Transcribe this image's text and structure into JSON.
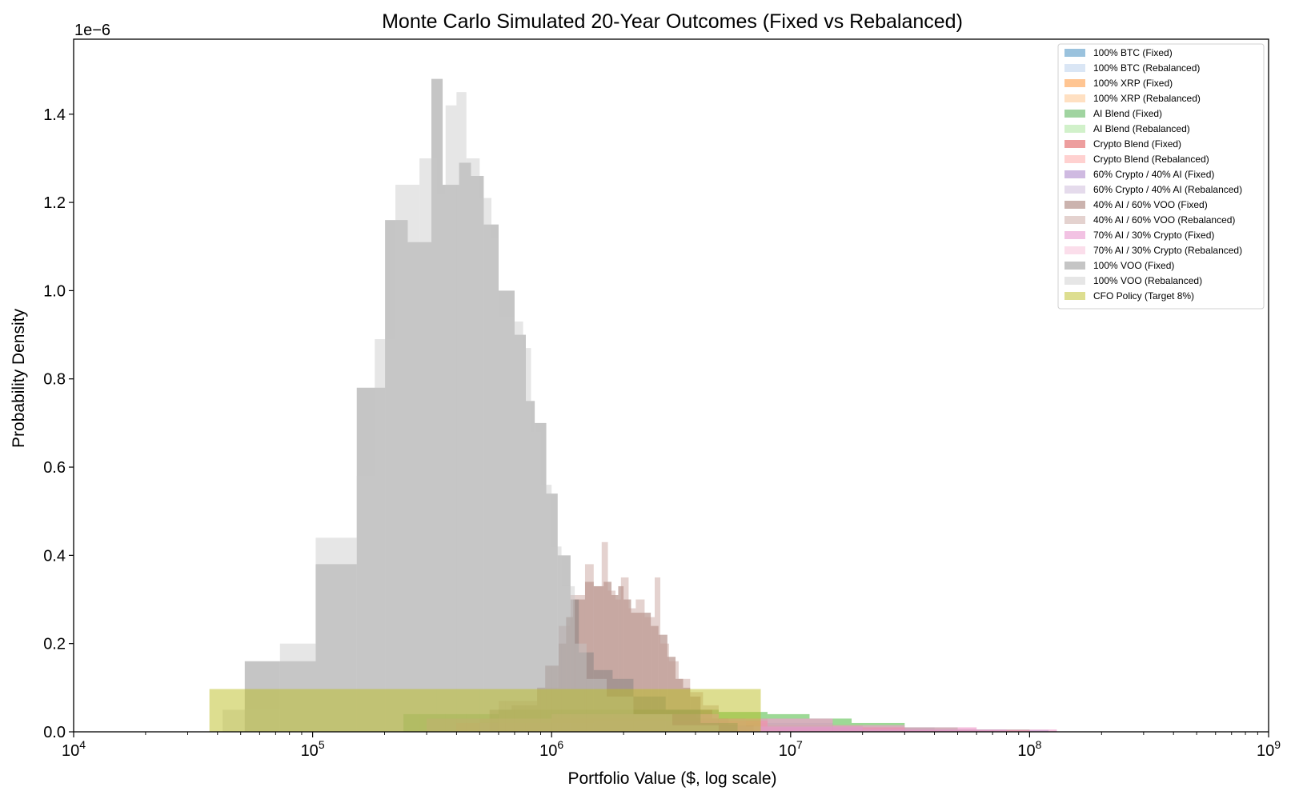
{
  "chart_data": {
    "type": "bar",
    "title": "Monte Carlo Simulated 20-Year Outcomes (Fixed vs Rebalanced)",
    "xlabel": "Portfolio Value ($, log scale)",
    "ylabel": "Probability Density",
    "y_offset_label": "1e−6",
    "x_scale": "log",
    "xlim": [
      10000,
      1000000000
    ],
    "ylim": [
      0,
      1.57
    ],
    "y_multiplier": 1e-06,
    "grid": false,
    "legend_position": "top-right",
    "x_ticks": [
      {
        "value": 10000,
        "base": "10",
        "exp": "4"
      },
      {
        "value": 100000,
        "base": "10",
        "exp": "5"
      },
      {
        "value": 1000000,
        "base": "10",
        "exp": "6"
      },
      {
        "value": 10000000,
        "base": "10",
        "exp": "7"
      },
      {
        "value": 100000000,
        "base": "10",
        "exp": "8"
      },
      {
        "value": 1000000000,
        "base": "10",
        "exp": "9"
      }
    ],
    "y_ticks": [
      {
        "value": 0.0,
        "label": "0.0"
      },
      {
        "value": 0.2,
        "label": "0.2"
      },
      {
        "value": 0.4,
        "label": "0.4"
      },
      {
        "value": 0.6,
        "label": "0.6"
      },
      {
        "value": 0.8,
        "label": "0.8"
      },
      {
        "value": 1.0,
        "label": "1.0"
      },
      {
        "value": 1.2,
        "label": "1.2"
      },
      {
        "value": 1.4,
        "label": "1.4"
      }
    ],
    "series": [
      {
        "name": "100% BTC (Fixed)",
        "color": "#1f77b4",
        "alpha": 0.45,
        "bins": [
          [
            700000,
            1500000,
            0.02
          ],
          [
            1500000,
            3000000,
            0.03
          ],
          [
            3000000,
            6000000,
            0.03
          ],
          [
            6000000,
            15000000,
            0.02
          ],
          [
            15000000,
            40000000,
            0.01
          ],
          [
            40000000,
            120000000,
            0.004
          ]
        ]
      },
      {
        "name": "100% BTC (Rebalanced)",
        "color": "#aec7e8",
        "alpha": 0.45,
        "bins": [
          [
            700000,
            1500000,
            0.02
          ],
          [
            1500000,
            3000000,
            0.03
          ],
          [
            3000000,
            6000000,
            0.03
          ],
          [
            6000000,
            15000000,
            0.02
          ],
          [
            15000000,
            40000000,
            0.01
          ],
          [
            40000000,
            120000000,
            0.004
          ]
        ]
      },
      {
        "name": "100% XRP (Fixed)",
        "color": "#ff7f0e",
        "alpha": 0.45,
        "bins": [
          [
            500000,
            1000000,
            0.03
          ],
          [
            1000000,
            2000000,
            0.04
          ],
          [
            2000000,
            4000000,
            0.04
          ],
          [
            4000000,
            8000000,
            0.03
          ],
          [
            8000000,
            20000000,
            0.015
          ]
        ]
      },
      {
        "name": "100% XRP (Rebalanced)",
        "color": "#ffbb78",
        "alpha": 0.45,
        "bins": [
          [
            500000,
            1000000,
            0.03
          ],
          [
            1000000,
            2000000,
            0.04
          ],
          [
            2000000,
            4000000,
            0.04
          ],
          [
            4000000,
            8000000,
            0.03
          ],
          [
            8000000,
            20000000,
            0.015
          ]
        ]
      },
      {
        "name": "AI Blend (Fixed)",
        "color": "#2ca02c",
        "alpha": 0.45,
        "bins": [
          [
            240000,
            600000,
            0.04
          ],
          [
            600000,
            2000000,
            0.05
          ],
          [
            2000000,
            5000000,
            0.05
          ],
          [
            5000000,
            8000000,
            0.045
          ],
          [
            8000000,
            12000000,
            0.04
          ],
          [
            12000000,
            18000000,
            0.03
          ],
          [
            18000000,
            30000000,
            0.02
          ],
          [
            30000000,
            50000000,
            0.01
          ],
          [
            50000000,
            100000000,
            0.005
          ]
        ]
      },
      {
        "name": "AI Blend (Rebalanced)",
        "color": "#98df8a",
        "alpha": 0.45,
        "bins": [
          [
            240000,
            600000,
            0.04
          ],
          [
            600000,
            2000000,
            0.05
          ],
          [
            2000000,
            5000000,
            0.05
          ],
          [
            5000000,
            8000000,
            0.045
          ],
          [
            8000000,
            12000000,
            0.04
          ],
          [
            12000000,
            18000000,
            0.03
          ],
          [
            18000000,
            30000000,
            0.02
          ],
          [
            30000000,
            50000000,
            0.01
          ],
          [
            50000000,
            100000000,
            0.005
          ]
        ]
      },
      {
        "name": "Crypto Blend (Fixed)",
        "color": "#d62728",
        "alpha": 0.45,
        "bins": [
          [
            400000,
            1000000,
            0.02
          ],
          [
            1000000,
            3000000,
            0.03
          ],
          [
            3000000,
            8000000,
            0.025
          ],
          [
            8000000,
            30000000,
            0.01
          ],
          [
            30000000,
            100000000,
            0.004
          ]
        ]
      },
      {
        "name": "Crypto Blend (Rebalanced)",
        "color": "#ff9896",
        "alpha": 0.45,
        "bins": [
          [
            400000,
            1000000,
            0.02
          ],
          [
            1000000,
            3000000,
            0.03
          ],
          [
            3000000,
            8000000,
            0.025
          ],
          [
            8000000,
            30000000,
            0.01
          ],
          [
            30000000,
            100000000,
            0.004
          ]
        ]
      },
      {
        "name": "60% Crypto / 40% AI (Fixed)",
        "color": "#9467bd",
        "alpha": 0.45,
        "bins": [
          [
            500000,
            1500000,
            0.02
          ],
          [
            1500000,
            5000000,
            0.025
          ],
          [
            5000000,
            20000000,
            0.012
          ],
          [
            20000000,
            80000000,
            0.005
          ]
        ]
      },
      {
        "name": "60% Crypto / 40% AI (Rebalanced)",
        "color": "#c5b0d5",
        "alpha": 0.45,
        "bins": [
          [
            500000,
            1500000,
            0.02
          ],
          [
            1500000,
            5000000,
            0.025
          ],
          [
            5000000,
            20000000,
            0.012
          ],
          [
            20000000,
            80000000,
            0.005
          ]
        ]
      },
      {
        "name": "40% AI / 60% VOO (Fixed)",
        "color": "#8c564b",
        "alpha": 0.45,
        "bins": [
          [
            550000,
            680000,
            0.05
          ],
          [
            680000,
            870000,
            0.06
          ],
          [
            870000,
            940000,
            0.1
          ],
          [
            940000,
            1070000,
            0.15
          ],
          [
            1070000,
            1150000,
            0.2
          ],
          [
            1150000,
            1230000,
            0.26
          ],
          [
            1230000,
            1380000,
            0.3
          ],
          [
            1380000,
            1500000,
            0.34
          ],
          [
            1500000,
            1650000,
            0.33
          ],
          [
            1650000,
            1780000,
            0.34
          ],
          [
            1780000,
            1900000,
            0.31
          ],
          [
            1900000,
            2000000,
            0.33
          ],
          [
            2000000,
            2150000,
            0.3
          ],
          [
            2150000,
            2400000,
            0.27
          ],
          [
            2400000,
            2600000,
            0.27
          ],
          [
            2600000,
            2800000,
            0.24
          ],
          [
            2800000,
            3050000,
            0.22
          ],
          [
            3050000,
            3300000,
            0.17
          ],
          [
            3300000,
            3550000,
            0.12
          ],
          [
            3550000,
            3800000,
            0.1
          ],
          [
            3800000,
            4200000,
            0.08
          ],
          [
            4200000,
            4700000,
            0.05
          ],
          [
            4700000,
            5500000,
            0.03
          ],
          [
            5500000,
            7000000,
            0.015
          ]
        ]
      },
      {
        "name": "40% AI / 60% VOO (Rebalanced)",
        "color": "#c49c94",
        "alpha": 0.45,
        "bins": [
          [
            600000,
            870000,
            0.07
          ],
          [
            870000,
            1070000,
            0.1
          ],
          [
            1070000,
            1200000,
            0.24
          ],
          [
            1200000,
            1380000,
            0.31
          ],
          [
            1380000,
            1500000,
            0.38
          ],
          [
            1500000,
            1620000,
            0.33
          ],
          [
            1620000,
            1720000,
            0.43
          ],
          [
            1720000,
            1850000,
            0.32
          ],
          [
            1850000,
            1950000,
            0.3
          ],
          [
            1950000,
            2100000,
            0.35
          ],
          [
            2100000,
            2250000,
            0.28
          ],
          [
            2250000,
            2450000,
            0.3
          ],
          [
            2450000,
            2700000,
            0.26
          ],
          [
            2700000,
            2850000,
            0.35
          ],
          [
            2850000,
            3100000,
            0.2
          ],
          [
            3100000,
            3400000,
            0.16
          ],
          [
            3400000,
            3800000,
            0.12
          ],
          [
            3800000,
            4300000,
            0.09
          ],
          [
            4300000,
            5000000,
            0.06
          ],
          [
            5000000,
            6500000,
            0.03
          ],
          [
            6500000,
            9000000,
            0.012
          ]
        ]
      },
      {
        "name": "70% AI / 30% Crypto (Fixed)",
        "color": "#e377c2",
        "alpha": 0.45,
        "bins": [
          [
            300000,
            1000000,
            0.03
          ],
          [
            1000000,
            5000000,
            0.04
          ],
          [
            5000000,
            15000000,
            0.03
          ],
          [
            15000000,
            30000000,
            0.015
          ],
          [
            30000000,
            60000000,
            0.01
          ],
          [
            60000000,
            130000000,
            0.005
          ]
        ]
      },
      {
        "name": "70% AI / 30% Crypto (Rebalanced)",
        "color": "#f7b6d2",
        "alpha": 0.45,
        "bins": [
          [
            300000,
            1000000,
            0.03
          ],
          [
            1000000,
            5000000,
            0.04
          ],
          [
            5000000,
            15000000,
            0.03
          ],
          [
            15000000,
            30000000,
            0.015
          ],
          [
            30000000,
            60000000,
            0.01
          ],
          [
            60000000,
            130000000,
            0.005
          ]
        ]
      },
      {
        "name": "100% VOO (Fixed)",
        "color": "#7f7f7f",
        "alpha": 0.45,
        "bins": [
          [
            52000,
            73000,
            0.16
          ],
          [
            73000,
            103000,
            0.16
          ],
          [
            103000,
            153000,
            0.38
          ],
          [
            153000,
            201000,
            0.78
          ],
          [
            201000,
            250000,
            1.16
          ],
          [
            250000,
            314000,
            1.11
          ],
          [
            314000,
            350000,
            1.48
          ],
          [
            350000,
            410000,
            1.24
          ],
          [
            410000,
            460000,
            1.29
          ],
          [
            460000,
            520000,
            1.26
          ],
          [
            520000,
            600000,
            1.15
          ],
          [
            600000,
            700000,
            1.0
          ],
          [
            700000,
            780000,
            0.9
          ],
          [
            780000,
            850000,
            0.75
          ],
          [
            850000,
            950000,
            0.7
          ],
          [
            950000,
            1060000,
            0.54
          ],
          [
            1060000,
            1200000,
            0.4
          ],
          [
            1200000,
            1300000,
            0.3
          ],
          [
            1300000,
            1500000,
            0.18
          ],
          [
            1500000,
            1800000,
            0.14
          ],
          [
            1800000,
            2200000,
            0.12
          ],
          [
            2200000,
            3000000,
            0.08
          ],
          [
            3000000,
            4200000,
            0.05
          ],
          [
            4200000,
            6000000,
            0.02
          ]
        ]
      },
      {
        "name": "100% VOO (Rebalanced)",
        "color": "#c7c7c7",
        "alpha": 0.45,
        "bins": [
          [
            42000,
            73000,
            0.05
          ],
          [
            73000,
            103000,
            0.2
          ],
          [
            103000,
            153000,
            0.44
          ],
          [
            153000,
            182000,
            0.58
          ],
          [
            182000,
            222000,
            0.89
          ],
          [
            222000,
            280000,
            1.24
          ],
          [
            280000,
            330000,
            1.3
          ],
          [
            330000,
            360000,
            1.22
          ],
          [
            360000,
            400000,
            1.42
          ],
          [
            400000,
            440000,
            1.45
          ],
          [
            440000,
            500000,
            1.3
          ],
          [
            500000,
            560000,
            1.21
          ],
          [
            560000,
            600000,
            1.12
          ],
          [
            600000,
            640000,
            0.94
          ],
          [
            640000,
            700000,
            0.94
          ],
          [
            700000,
            760000,
            0.93
          ],
          [
            760000,
            820000,
            0.87
          ],
          [
            820000,
            900000,
            0.68
          ],
          [
            900000,
            1000000,
            0.56
          ],
          [
            1000000,
            1100000,
            0.42
          ],
          [
            1100000,
            1250000,
            0.33
          ],
          [
            1250000,
            1400000,
            0.2
          ],
          [
            1400000,
            1700000,
            0.12
          ],
          [
            1700000,
            2200000,
            0.08
          ],
          [
            2200000,
            3200000,
            0.04
          ],
          [
            3200000,
            5000000,
            0.015
          ]
        ]
      },
      {
        "name": "CFO Policy (Target 8%)",
        "color": "#bcbd22",
        "alpha": 0.5,
        "bins": [
          [
            37000,
            7500000,
            0.097
          ]
        ]
      }
    ]
  }
}
